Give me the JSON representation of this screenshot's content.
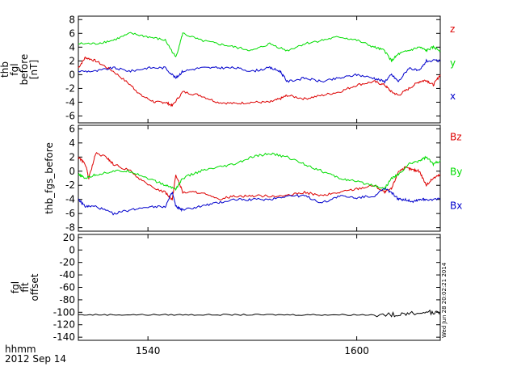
{
  "colors": {
    "x": "#0000cc",
    "y": "#00dd00",
    "z": "#dd0000",
    "offset": "#000000",
    "axis": "#000000"
  },
  "footer": {
    "time_label": "hhmm",
    "date_label": "2012 Sep 14"
  },
  "side_stamp": "Wed Jun 28 20:02:21 2014",
  "chart_data": [
    {
      "type": "line",
      "ylabel_lines": [
        "thb",
        "fgl",
        "before",
        "[nT]"
      ],
      "xlim": [
        1520,
        1624
      ],
      "ylim": [
        -7,
        8.5
      ],
      "yticks": [
        8,
        6,
        4,
        2,
        0,
        -2,
        -4,
        -6
      ],
      "grid": false,
      "legend": "right",
      "series": [
        {
          "name": "z",
          "color_key": "z",
          "x": [
            1520,
            1522,
            1525,
            1530,
            1535,
            1538,
            1542,
            1545,
            1547,
            1550,
            1555,
            1560,
            1565,
            1570,
            1575,
            1578,
            1580,
            1585,
            1590,
            1595,
            1600,
            1605,
            1608,
            1610,
            1612,
            1615,
            1618,
            1620,
            1622,
            1624
          ],
          "y": [
            1,
            2.5,
            2,
            0.5,
            -1.5,
            -3,
            -4,
            -4,
            -4.5,
            -2.5,
            -3,
            -4,
            -4.2,
            -4,
            -4,
            -3.5,
            -3,
            -3.5,
            -3,
            -2.5,
            -1.5,
            -1,
            -1.5,
            -2.5,
            -3,
            -2,
            -1,
            -0.8,
            -1.5,
            0
          ]
        },
        {
          "name": "y",
          "color_key": "y",
          "x": [
            1520,
            1525,
            1530,
            1535,
            1540,
            1545,
            1548,
            1550,
            1555,
            1560,
            1565,
            1570,
            1575,
            1580,
            1585,
            1590,
            1595,
            1600,
            1605,
            1608,
            1610,
            1612,
            1615,
            1618,
            1620,
            1622,
            1624
          ],
          "y": [
            4.5,
            4.5,
            5,
            6,
            5.5,
            5,
            2.5,
            6,
            5,
            4.5,
            4,
            3.5,
            4.5,
            3.5,
            4.5,
            5,
            5.5,
            5,
            4,
            3.5,
            2,
            3,
            3.5,
            4,
            3.5,
            4,
            3.5
          ]
        },
        {
          "name": "x",
          "color_key": "x",
          "x": [
            1520,
            1525,
            1530,
            1535,
            1540,
            1545,
            1548,
            1550,
            1555,
            1560,
            1565,
            1570,
            1575,
            1578,
            1580,
            1585,
            1590,
            1595,
            1600,
            1605,
            1608,
            1610,
            1612,
            1615,
            1618,
            1620,
            1624
          ],
          "y": [
            0.5,
            0.5,
            1,
            0.5,
            1,
            1,
            -0.5,
            0.5,
            1,
            1,
            1,
            0.5,
            1,
            0.5,
            -1,
            -0.5,
            -1,
            -0.5,
            0,
            -0.5,
            -1,
            0,
            -1,
            1,
            0.5,
            2,
            2
          ]
        }
      ]
    },
    {
      "type": "line",
      "ylabel_lines": [
        "thb_fgs_before"
      ],
      "xlim": [
        1520,
        1624
      ],
      "ylim": [
        -8.5,
        6.5
      ],
      "yticks": [
        6,
        4,
        2,
        0,
        -2,
        -4,
        -6,
        -8
      ],
      "grid": false,
      "legend": "right",
      "series": [
        {
          "name": "Bz",
          "color_key": "z",
          "x": [
            1520,
            1522,
            1523,
            1525,
            1528,
            1530,
            1535,
            1540,
            1545,
            1547,
            1548,
            1550,
            1555,
            1560,
            1565,
            1570,
            1575,
            1580,
            1585,
            1590,
            1595,
            1600,
            1605,
            1608,
            1610,
            1612,
            1614,
            1616,
            1618,
            1620,
            1622,
            1624
          ],
          "y": [
            2,
            1,
            -1,
            2.5,
            2,
            1,
            0,
            -2,
            -3,
            -4,
            -0.5,
            -3,
            -3,
            -4,
            -3.5,
            -3.5,
            -3.5,
            -3.5,
            -3,
            -3.5,
            -3,
            -2.5,
            -2,
            -3,
            -2.5,
            0,
            0.5,
            0.2,
            0,
            -2,
            -1,
            -0.5
          ]
        },
        {
          "name": "By",
          "color_key": "y",
          "x": [
            1520,
            1522,
            1525,
            1530,
            1535,
            1540,
            1545,
            1548,
            1550,
            1555,
            1560,
            1565,
            1570,
            1575,
            1580,
            1585,
            1590,
            1595,
            1600,
            1605,
            1608,
            1610,
            1612,
            1615,
            1618,
            1620,
            1622,
            1624
          ],
          "y": [
            -0.5,
            -1,
            -0.5,
            0,
            0,
            -1,
            -2,
            -2.5,
            -1,
            0,
            0.5,
            1,
            2,
            2.5,
            2,
            1,
            0,
            -1,
            -1.5,
            -2,
            -2.5,
            -1,
            -0.5,
            1,
            1.5,
            2,
            1,
            1.5
          ]
        },
        {
          "name": "Bx",
          "color_key": "x",
          "x": [
            1520,
            1522,
            1525,
            1530,
            1535,
            1540,
            1545,
            1547,
            1548,
            1550,
            1555,
            1560,
            1565,
            1570,
            1575,
            1580,
            1585,
            1590,
            1595,
            1600,
            1605,
            1608,
            1610,
            1612,
            1614,
            1616,
            1618,
            1620,
            1624
          ],
          "y": [
            -4,
            -5,
            -5,
            -6,
            -5.5,
            -5,
            -5,
            -3,
            -5,
            -5.5,
            -5,
            -4.5,
            -4,
            -4,
            -4,
            -3.5,
            -3.5,
            -4.5,
            -3.5,
            -3.8,
            -3.5,
            -2.5,
            -3,
            -4,
            -4,
            -4.3,
            -4,
            -4,
            -4
          ]
        }
      ]
    },
    {
      "type": "line",
      "ylabel_lines": [
        "fgl",
        "fit",
        "offset"
      ],
      "xlim": [
        1520,
        1624
      ],
      "ylim": [
        -145,
        25
      ],
      "yticks": [
        20,
        0,
        -20,
        -40,
        -60,
        -80,
        -100,
        -120,
        -140
      ],
      "grid": false,
      "series": [
        {
          "name": "",
          "color_key": "offset",
          "x": [
            1520,
            1530,
            1540,
            1550,
            1560,
            1570,
            1580,
            1590,
            1600,
            1610,
            1615,
            1620,
            1624
          ],
          "y": [
            -104,
            -104,
            -104,
            -104,
            -104,
            -104,
            -104,
            -104,
            -104,
            -104,
            -102,
            -100,
            -102
          ]
        }
      ]
    }
  ],
  "xaxis": {
    "ticks": [
      1540,
      1600
    ],
    "tick_labels": [
      "1540",
      "1600"
    ]
  }
}
